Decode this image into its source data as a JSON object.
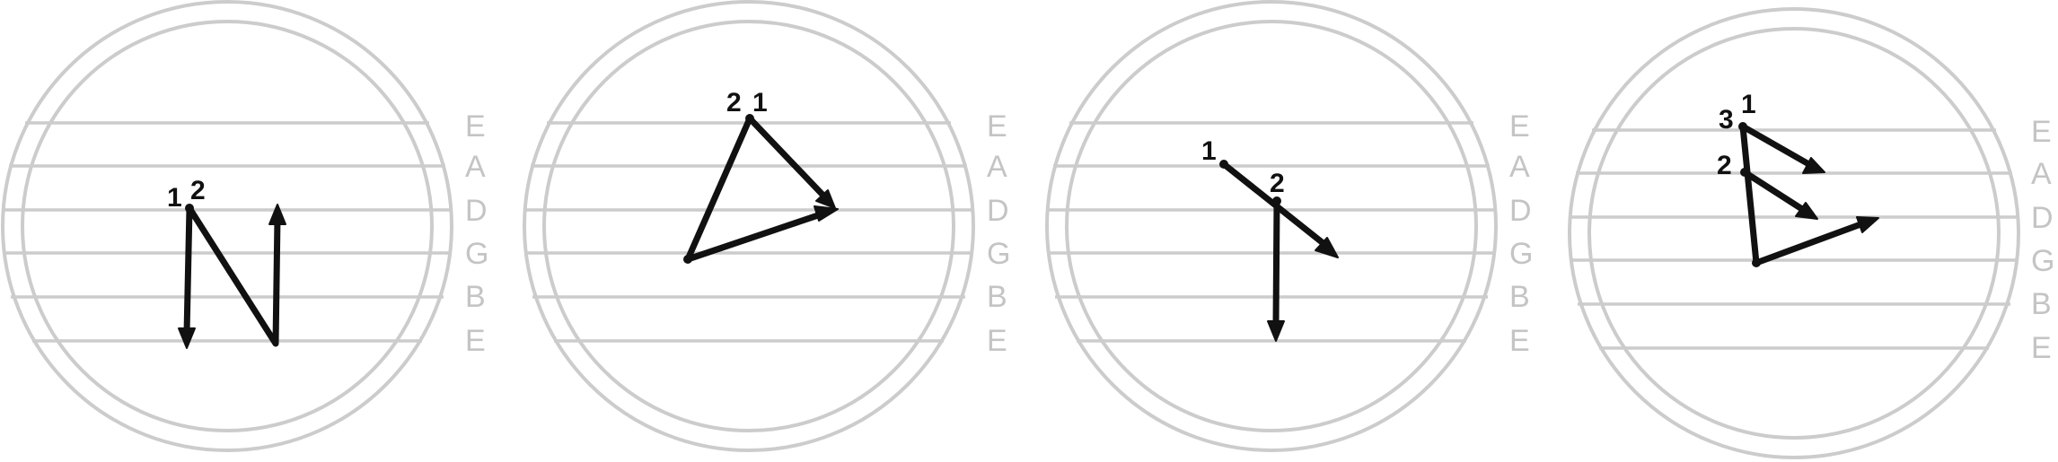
{
  "strings": [
    "E",
    "A",
    "D",
    "G",
    "B",
    "E"
  ],
  "diagrams": [
    {
      "id": 1,
      "labels": [
        {
          "text": "1"
        },
        {
          "text": "2"
        }
      ]
    },
    {
      "id": 2,
      "labels": [
        {
          "text": "2"
        },
        {
          "text": "1"
        }
      ]
    },
    {
      "id": 3,
      "labels": [
        {
          "text": "1"
        },
        {
          "text": "2"
        }
      ]
    },
    {
      "id": 4,
      "labels": [
        {
          "text": "3"
        },
        {
          "text": "1"
        },
        {
          "text": "2"
        }
      ]
    }
  ]
}
